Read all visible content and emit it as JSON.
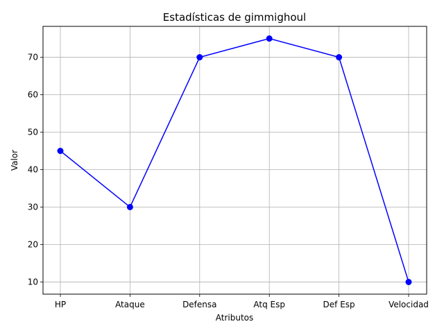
{
  "chart_data": {
    "type": "line",
    "title": "Estadísticas de gimmighoul",
    "xlabel": "Atributos",
    "ylabel": "Valor",
    "categories": [
      "HP",
      "Ataque",
      "Defensa",
      "Atq Esp",
      "Def Esp",
      "Velocidad"
    ],
    "series": [
      {
        "values": [
          45,
          30,
          70,
          75,
          70,
          10
        ],
        "color": "#0000ff",
        "marker": "circle"
      }
    ],
    "ylim": [
      6.75,
      78.25
    ],
    "yticks": [
      10,
      20,
      30,
      40,
      50,
      60,
      70
    ],
    "grid": true,
    "legend": "none"
  }
}
